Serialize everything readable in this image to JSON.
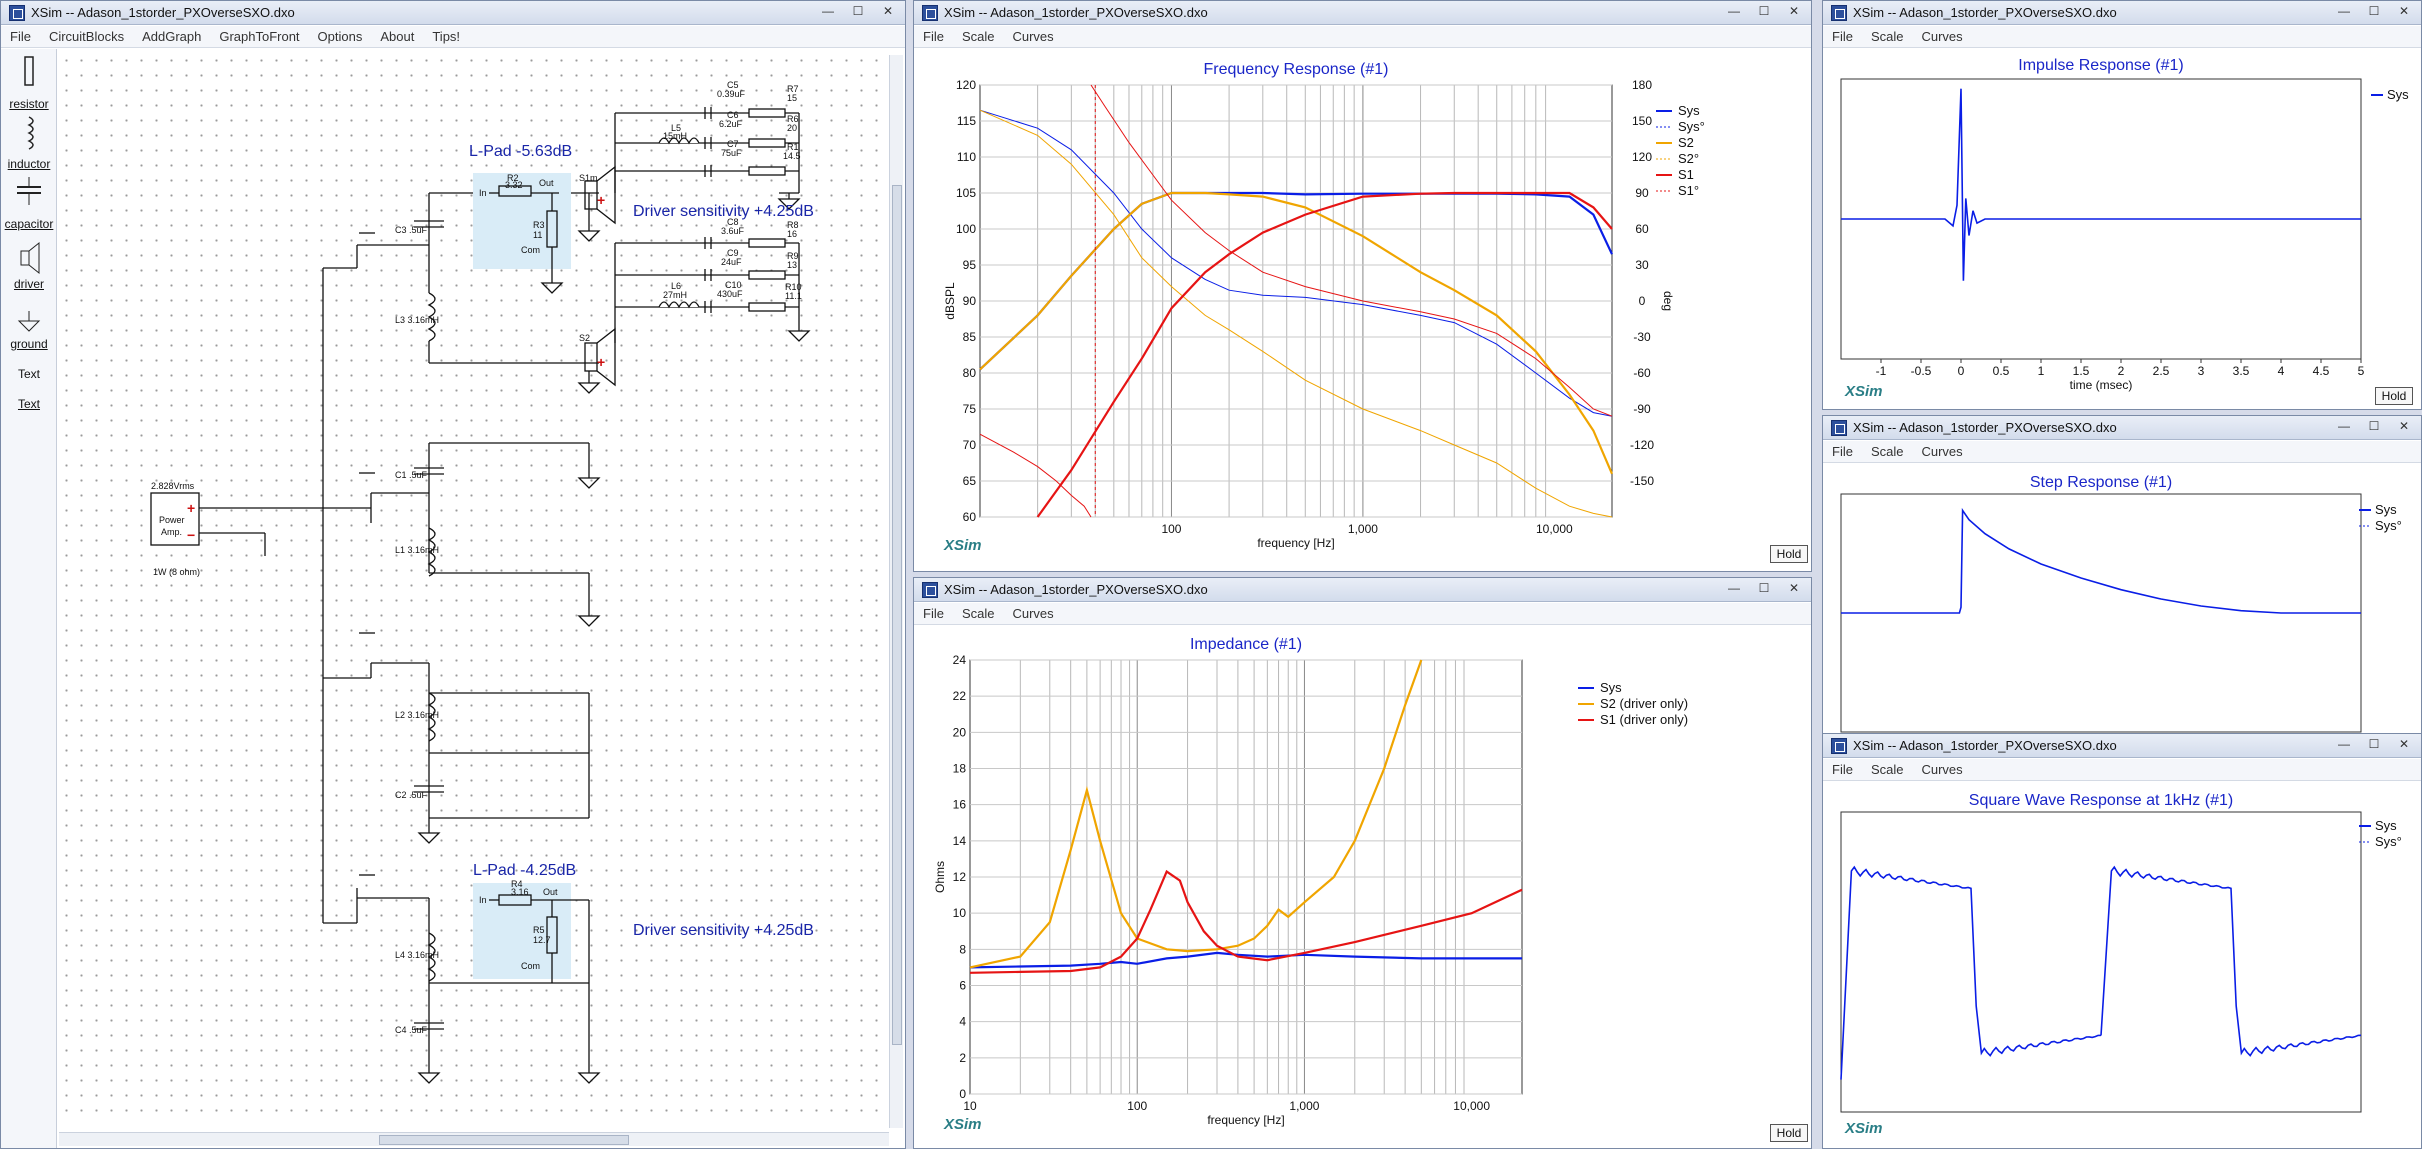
{
  "window_title": "XSim -- Adason_1storder_PXOverseSXO.dxo",
  "schematic": {
    "menu": [
      "File",
      "CircuitBlocks",
      "AddGraph",
      "GraphToFront",
      "Options",
      "About",
      "Tips!"
    ],
    "palette": [
      "resistor",
      "inductor",
      "capacitor",
      "driver",
      "ground",
      "Text",
      "Text"
    ],
    "lpad_top": "L-Pad -5.63dB",
    "lpad_bottom": "L-Pad -4.25dB",
    "sens_top": "Driver sensitivity +4.25dB",
    "sens_bottom": "Driver sensitivity +4.25dB",
    "source_top": "2.828Vrms",
    "source_label1": "Power",
    "source_label2": "Amp.",
    "source_bottom": "1W (8 ohm)",
    "lpad_in": "In",
    "lpad_out": "Out",
    "lpad_com": "Com",
    "r2_name": "R2",
    "r2_val": "3.32",
    "r3_name": "R3",
    "r3_val": "11",
    "r4_name": "R4",
    "r4_val": "3.16",
    "r5_name": "R5",
    "r5_val": "12.7",
    "s1_name": "S1m",
    "s2_name": "S2",
    "c3": "C3 .5uF",
    "l3": "L3 3.16mH",
    "c1": "C1 .5uF",
    "l1": "L1 3.16mH",
    "l2": "L2 3.16mH",
    "c2": "C2 .5uF",
    "l4": "L4 3.16mH",
    "c4": "C4 .5uF",
    "notch_top": {
      "c5": "C5",
      "c5v": "0.39uF",
      "c6": "C6",
      "c6v": "6.2uF",
      "l5": "L5",
      "l5v": "15mH",
      "c7": "C7",
      "c7v": "75uF",
      "r7": "R7",
      "r7v": "15",
      "r6": "R6",
      "r6v": "20",
      "r1": "R1",
      "r1v": "14.5"
    },
    "notch_bot": {
      "c8": "C8",
      "c8v": "3.6uF",
      "c9": "C9",
      "c9v": "24uF",
      "l6": "L6",
      "l6v": "27mH",
      "c10": "C10",
      "c10v": "430uF",
      "r8": "R8",
      "r8v": "16",
      "r9": "R9",
      "r9v": "13",
      "r10": "R10",
      "r10v": "11.1"
    }
  },
  "windows": {
    "menu": [
      "File",
      "Scale",
      "Curves"
    ],
    "hold_label": "Hold",
    "logo": "XSim"
  },
  "frequency_response": {
    "chart_data": {
      "type": "line",
      "title": "Frequency Response (#1)",
      "xlabel": "frequency [Hz]",
      "ylabel": "dBSPL",
      "y2label": "deg",
      "x_scale": "log",
      "xlim": [
        10,
        20000
      ],
      "ylim": [
        60,
        120
      ],
      "y2lim": [
        -180,
        180
      ],
      "x_ticks": [
        "100",
        "1,000",
        "10,000"
      ],
      "y_ticks": [
        60,
        65,
        70,
        75,
        80,
        85,
        90,
        95,
        100,
        105,
        110,
        115,
        120
      ],
      "y2_ticks": [
        -150,
        -120,
        -90,
        -60,
        -30,
        0,
        30,
        60,
        90,
        120,
        150,
        180
      ],
      "grid": true,
      "legend": "top-right",
      "series": [
        {
          "name": "Sys",
          "color": "#0a1ee6",
          "x": [
            10,
            20,
            30,
            50,
            70,
            100,
            150,
            200,
            300,
            500,
            1000,
            2000,
            3000,
            5000,
            8000,
            12000,
            16000,
            20000
          ],
          "values": [
            80.5,
            88,
            93.5,
            100,
            103.5,
            105,
            105,
            105,
            105,
            104.8,
            104.9,
            104.9,
            104.9,
            104.9,
            104.8,
            104.5,
            102,
            96.5
          ]
        },
        {
          "name": "Sys°",
          "color": "#0a1ee6",
          "x": [
            10,
            20,
            30,
            50,
            70,
            100,
            150,
            200,
            300,
            500,
            1000,
            2000,
            3000,
            5000,
            8000,
            12000,
            16000,
            20000
          ],
          "values": [
            116.5,
            114,
            111,
            105,
            100,
            96,
            93,
            91.5,
            90.8,
            90.5,
            89.5,
            88,
            87,
            84,
            80,
            76.5,
            74.5,
            74
          ]
        },
        {
          "name": "S2",
          "color": "#f0a500",
          "x": [
            10,
            20,
            30,
            50,
            70,
            100,
            150,
            200,
            300,
            500,
            1000,
            2000,
            3000,
            5000,
            8000,
            12000,
            16000,
            20000
          ],
          "values": [
            80.5,
            88,
            93.5,
            100,
            103.5,
            105,
            105,
            104.8,
            104.5,
            103,
            99,
            94,
            91.5,
            88,
            83,
            77,
            72,
            66
          ]
        },
        {
          "name": "S2°",
          "color": "#f0a500",
          "x": [
            10,
            20,
            30,
            50,
            70,
            100,
            150,
            200,
            300,
            500,
            1000,
            2000,
            3000,
            5000,
            8000,
            12000,
            16000,
            20000
          ],
          "values": [
            116.5,
            113,
            109,
            102,
            96,
            92,
            88,
            86,
            83,
            79,
            75,
            72,
            70,
            67.5,
            64,
            61.5,
            60.5,
            60
          ]
        },
        {
          "name": "S1",
          "color": "#e61414",
          "x": [
            20,
            30,
            50,
            70,
            100,
            150,
            200,
            300,
            500,
            1000,
            2000,
            3000,
            5000,
            8000,
            12000,
            16000,
            20000
          ],
          "values": [
            60,
            66.5,
            76,
            82,
            89,
            94,
            96.5,
            99.5,
            102,
            104.5,
            104.9,
            105,
            105,
            105,
            105,
            103,
            100
          ]
        },
        {
          "name": "S1°",
          "color": "#e61414",
          "x": [
            38,
            45,
            60,
            80,
            100,
            150,
            200,
            300,
            500,
            1000,
            2000,
            3000,
            5000,
            8000,
            12000,
            16000,
            20000
          ],
          "values": [
            120,
            117,
            112,
            107.5,
            104,
            99.5,
            97,
            94,
            92,
            90,
            88.5,
            87.5,
            85.5,
            82,
            78,
            75,
            74
          ]
        }
      ],
      "annotations": [
        "dashed red vertical marker near 40 Hz",
        "low-frequency red phase segment from 10 Hz to 38 Hz"
      ]
    }
  },
  "impedance": {
    "chart_data": {
      "type": "line",
      "title": "Impedance (#1)",
      "xlabel": "frequency [Hz]",
      "ylabel": "Ohms",
      "x_scale": "log",
      "xlim": [
        10,
        20000
      ],
      "ylim": [
        0,
        24
      ],
      "x_ticks": [
        "10",
        "100",
        "1,000",
        "10,000"
      ],
      "y_ticks": [
        0,
        2,
        4,
        6,
        8,
        10,
        12,
        14,
        16,
        18,
        20,
        22,
        24
      ],
      "grid": true,
      "legend": "top-right",
      "series": [
        {
          "name": "Sys",
          "color": "#0a1ee6",
          "x": [
            10,
            20,
            40,
            60,
            80,
            100,
            150,
            200,
            300,
            400,
            600,
            1000,
            2000,
            5000,
            10000,
            20000
          ],
          "values": [
            7.0,
            7.05,
            7.1,
            7.2,
            7.3,
            7.2,
            7.5,
            7.6,
            7.8,
            7.7,
            7.6,
            7.7,
            7.6,
            7.5,
            7.5,
            7.5
          ]
        },
        {
          "name": "S2 (driver only)",
          "color": "#f0a500",
          "x": [
            10,
            20,
            30,
            40,
            50,
            60,
            80,
            100,
            150,
            200,
            300,
            400,
            500,
            600,
            700,
            800,
            1000,
            1500,
            2000,
            3000,
            4000,
            5000
          ],
          "values": [
            7.0,
            7.6,
            9.5,
            13.5,
            16.8,
            14,
            10,
            8.6,
            8.0,
            7.9,
            8.0,
            8.2,
            8.6,
            9.3,
            10.2,
            9.8,
            10.6,
            12.0,
            14.0,
            18.0,
            21.5,
            24
          ]
        },
        {
          "name": "S1 (driver only)",
          "color": "#e61414",
          "x": [
            10,
            20,
            40,
            60,
            80,
            100,
            120,
            150,
            180,
            200,
            250,
            300,
            400,
            600,
            1000,
            2000,
            5000,
            10000,
            20000
          ],
          "values": [
            6.7,
            6.75,
            6.8,
            7.0,
            7.6,
            8.6,
            10.2,
            12.3,
            11.8,
            10.6,
            9.0,
            8.2,
            7.6,
            7.4,
            7.8,
            8.4,
            9.3,
            10.0,
            11.3
          ]
        }
      ]
    }
  },
  "impulse": {
    "chart_data": {
      "type": "line",
      "title": "Impulse Response (#1)",
      "xlabel": "time (msec)",
      "xlim": [
        -1.5,
        5
      ],
      "x_ticks": [
        "-1",
        "-0.5",
        "0",
        "0.5",
        "1",
        "1.5",
        "2",
        "2.5",
        "3",
        "3.5",
        "4",
        "4.5",
        "5"
      ],
      "ylim": [
        -1,
        1
      ],
      "legend": "top-right",
      "series": [
        {
          "name": "Sys",
          "color": "#0a1ee6",
          "x": [
            -1.5,
            -0.2,
            -0.1,
            -0.05,
            0,
            0.03,
            0.06,
            0.1,
            0.15,
            0.2,
            0.3,
            5
          ],
          "values": [
            0,
            0,
            -0.05,
            0.1,
            0.95,
            -0.45,
            0.15,
            -0.12,
            0.06,
            -0.03,
            0,
            0
          ]
        }
      ]
    }
  },
  "step": {
    "chart_data": {
      "type": "line",
      "title": "Step Response (#1)",
      "xlim": [
        -1.5,
        5
      ],
      "ylim": [
        -1,
        1
      ],
      "legend": "top-right",
      "series": [
        {
          "name": "Sys",
          "color": "#0a1ee6",
          "x": [
            -1.5,
            -0.02,
            0,
            0.02,
            0.1,
            0.3,
            0.6,
            1,
            1.5,
            2,
            2.5,
            3,
            3.5,
            4,
            5
          ],
          "values": [
            0,
            0,
            0.05,
            0.88,
            0.8,
            0.68,
            0.55,
            0.42,
            0.3,
            0.2,
            0.12,
            0.06,
            0.02,
            0.0,
            0.0
          ]
        },
        {
          "name": "Sys°",
          "color": "#0a1ee6",
          "x": [],
          "values": []
        }
      ]
    }
  },
  "square": {
    "chart_data": {
      "type": "line",
      "title": "Square Wave Response at 1kHz (#1)",
      "ylim": [
        -1,
        1
      ],
      "legend": "top-right",
      "series": [
        {
          "name": "Sys",
          "color": "#0a1ee6",
          "x": [
            0,
            0.02,
            0.25,
            0.26,
            0.27,
            0.5,
            0.52,
            0.75,
            0.76,
            0.77,
            1
          ],
          "values": [
            -0.8,
            0.62,
            0.5,
            -0.3,
            -0.62,
            -0.5,
            0.62,
            0.5,
            -0.3,
            -0.62,
            -0.5
          ]
        },
        {
          "name": "Sys°",
          "color": "#0a1ee6",
          "x": [],
          "values": []
        }
      ]
    }
  }
}
